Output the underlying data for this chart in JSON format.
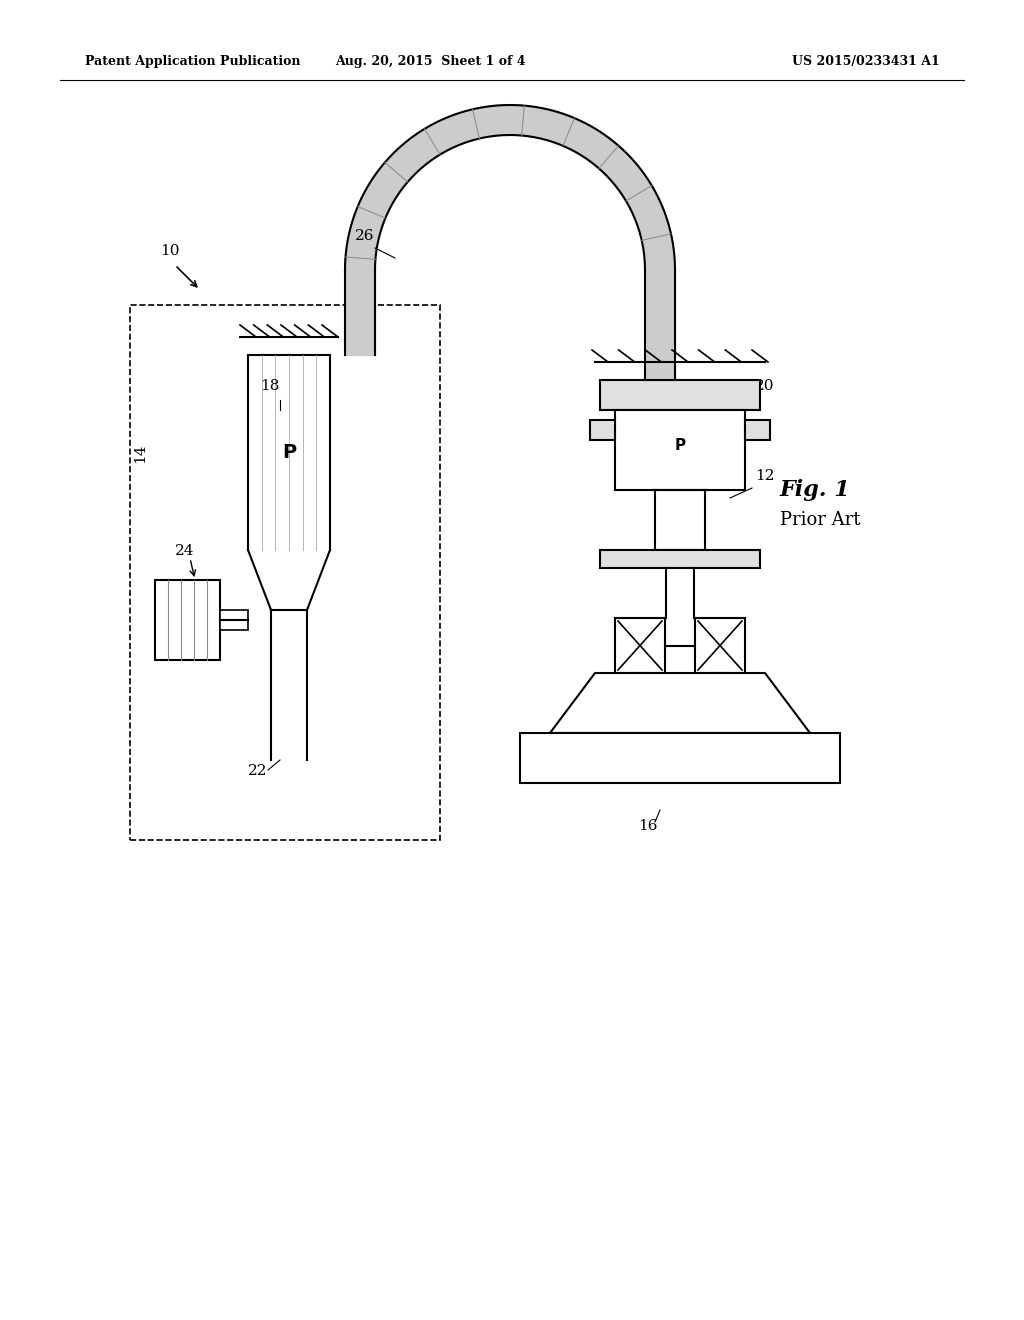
{
  "bg_color": "#ffffff",
  "line_color": "#000000",
  "gray_fill": "#d0d0d0",
  "light_gray": "#e8e8e8",
  "header_left": "Patent Application Publication",
  "header_mid": "Aug. 20, 2015  Sheet 1 of 4",
  "header_right": "US 2015/0233431 A1",
  "fig_label": "Fig. 1",
  "fig_sublabel": "Prior Art",
  "label_10": "10",
  "label_12": "12",
  "label_14": "14",
  "label_16": "16",
  "label_18": "18",
  "label_20": "20",
  "label_22": "22",
  "label_24": "24",
  "label_26": "26"
}
